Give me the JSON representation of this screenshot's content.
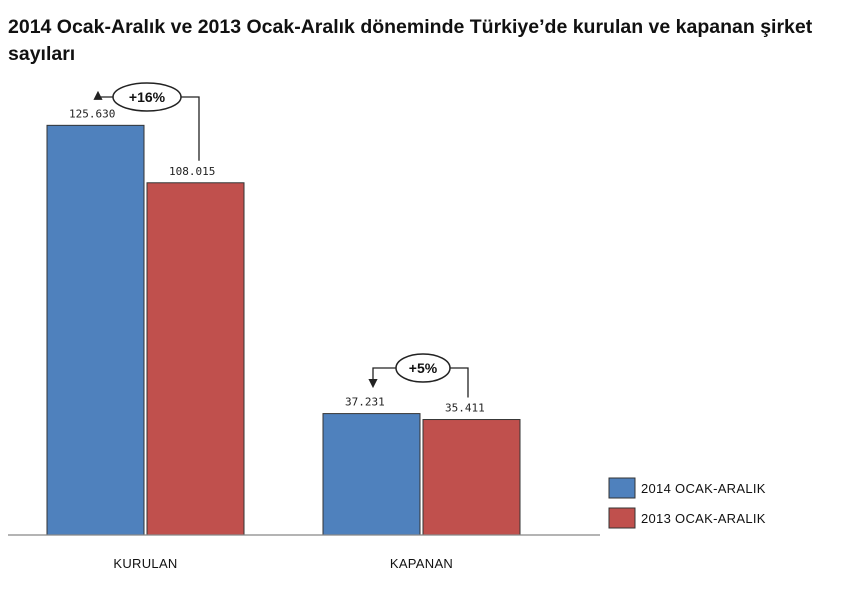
{
  "chart_data": {
    "type": "bar",
    "title": "2014 Ocak-Aralık ve 2013 Ocak-Aralık döneminde Türkiye’de kurulan ve kapanan şirket sayıları",
    "categories": [
      "KURULAN",
      "KAPANAN"
    ],
    "series": [
      {
        "name": "2014 OCAK-ARALIK",
        "values": [
          125630,
          37231
        ],
        "labels": [
          "125.630",
          "37.231"
        ],
        "color": "#4f81bd"
      },
      {
        "name": "2013 OCAK-ARALIK",
        "values": [
          108015,
          35411
        ],
        "labels": [
          "108.015",
          "35.411"
        ],
        "color": "#c0504d"
      }
    ],
    "annotations": [
      "+16%",
      "+5%"
    ],
    "ylim": [
      0,
      138000
    ],
    "grid": false,
    "legend_position": "bottom-right",
    "xlabel": "",
    "ylabel": ""
  }
}
